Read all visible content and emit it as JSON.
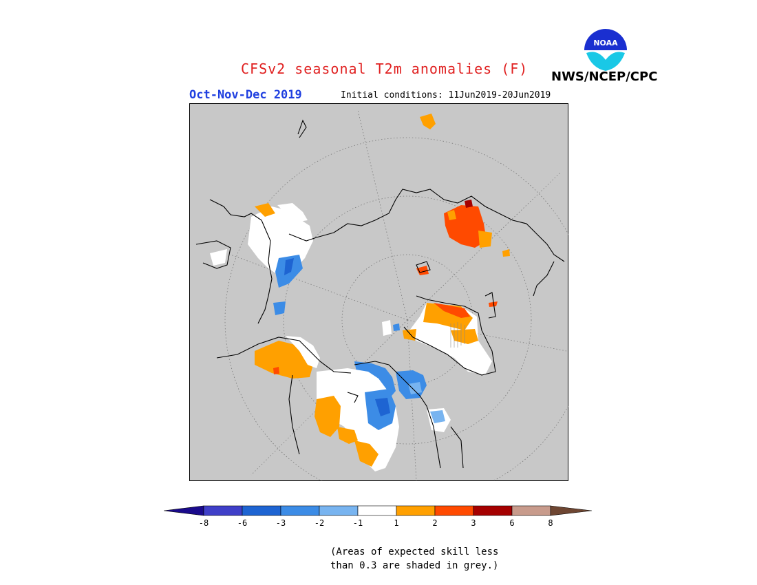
{
  "title": "CFSv2 seasonal T2m anomalies (F)",
  "season": "Oct-Nov-Dec 2019",
  "initial_conditions": "Initial conditions: 11Jun2019-20Jun2019",
  "organization": "NWS/NCEP/CPC",
  "logo_text": "NOAA",
  "footnote_lines": [
    "(Areas of expected skill less",
    "than 0.3 are shaded in grey.)"
  ],
  "colors": {
    "title": "#e02020",
    "season": "#2040e0",
    "skill_grey": "#c8c8c8"
  },
  "colorbar": {
    "colors": [
      "#1a0a8c",
      "#3f3fc8",
      "#1e64d2",
      "#3c8ce6",
      "#78b4f0",
      "#ffffff",
      "#ffa000",
      "#ff4a00",
      "#a50000",
      "#c89b8c",
      "#6e4632"
    ],
    "tick_labels": [
      "-8",
      "-6",
      "-3",
      "-2",
      "-1",
      "1",
      "2",
      "3",
      "6",
      "8"
    ]
  }
}
